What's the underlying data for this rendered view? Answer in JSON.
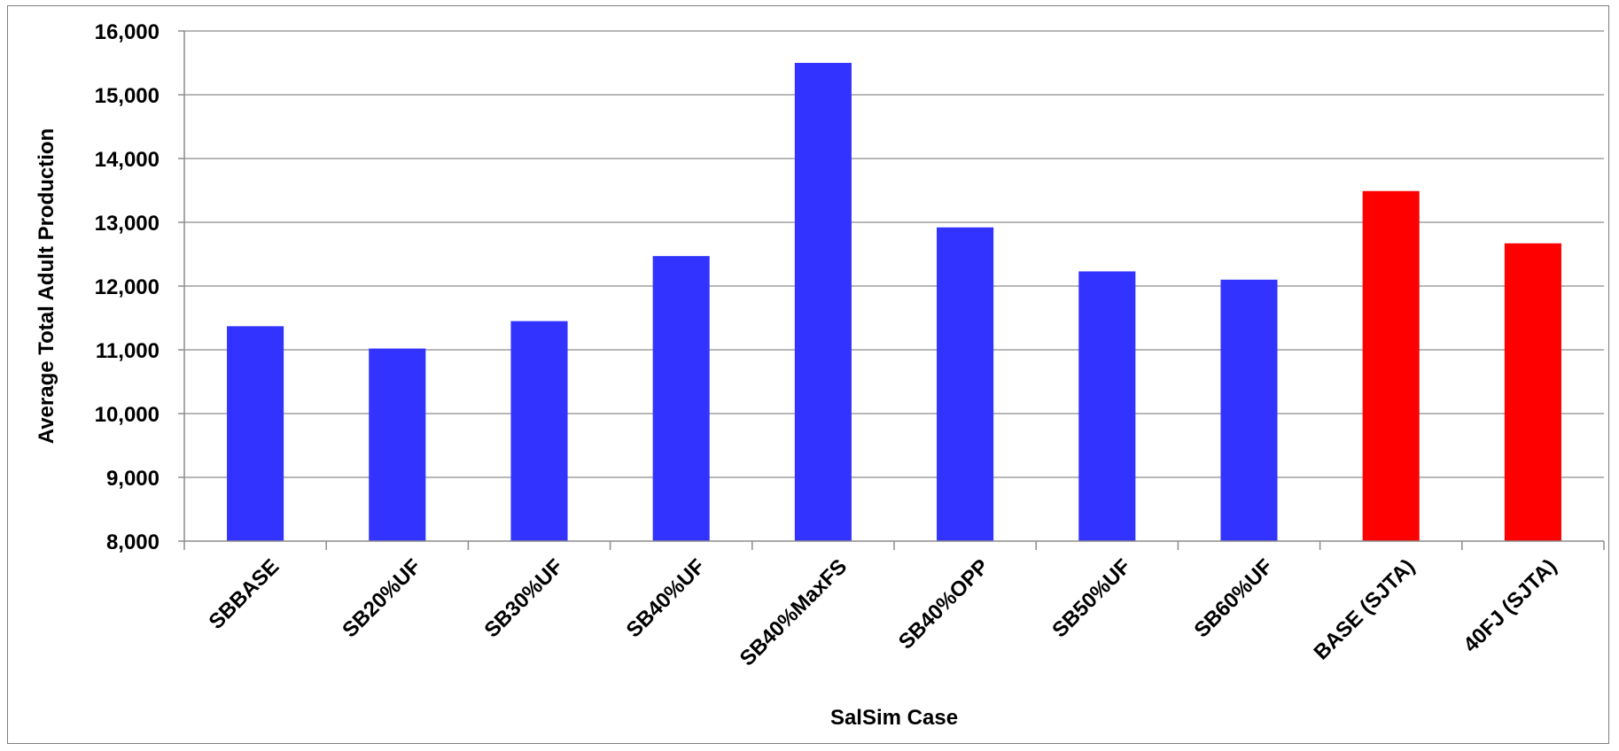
{
  "chart_data": {
    "type": "bar",
    "title": "",
    "xlabel": "SalSim Case",
    "ylabel": "Average Total Adult Production",
    "ylim": [
      8000,
      16000
    ],
    "yticks": [
      8000,
      9000,
      10000,
      11000,
      12000,
      13000,
      14000,
      15000,
      16000
    ],
    "ytick_labels": [
      "8,000",
      "9,000",
      "10,000",
      "11,000",
      "12,000",
      "13,000",
      "14,000",
      "15,000",
      "16,000"
    ],
    "grid": true,
    "legend": "none",
    "categories": [
      "SBBASE",
      "SB20%UF",
      "SB30%UF",
      "SB40%UF",
      "SB40%MaxFS",
      "SB40%OPP",
      "SB50%UF",
      "SB60%UF",
      "BASE (SJTA)",
      "40FJ (SJTA)"
    ],
    "values": [
      11370,
      11020,
      11450,
      12470,
      15500,
      12920,
      12230,
      12100,
      13490,
      12670
    ],
    "bar_colors": [
      "#3333ff",
      "#3333ff",
      "#3333ff",
      "#3333ff",
      "#3333ff",
      "#3333ff",
      "#3333ff",
      "#3333ff",
      "#ff0000",
      "#ff0000"
    ]
  }
}
